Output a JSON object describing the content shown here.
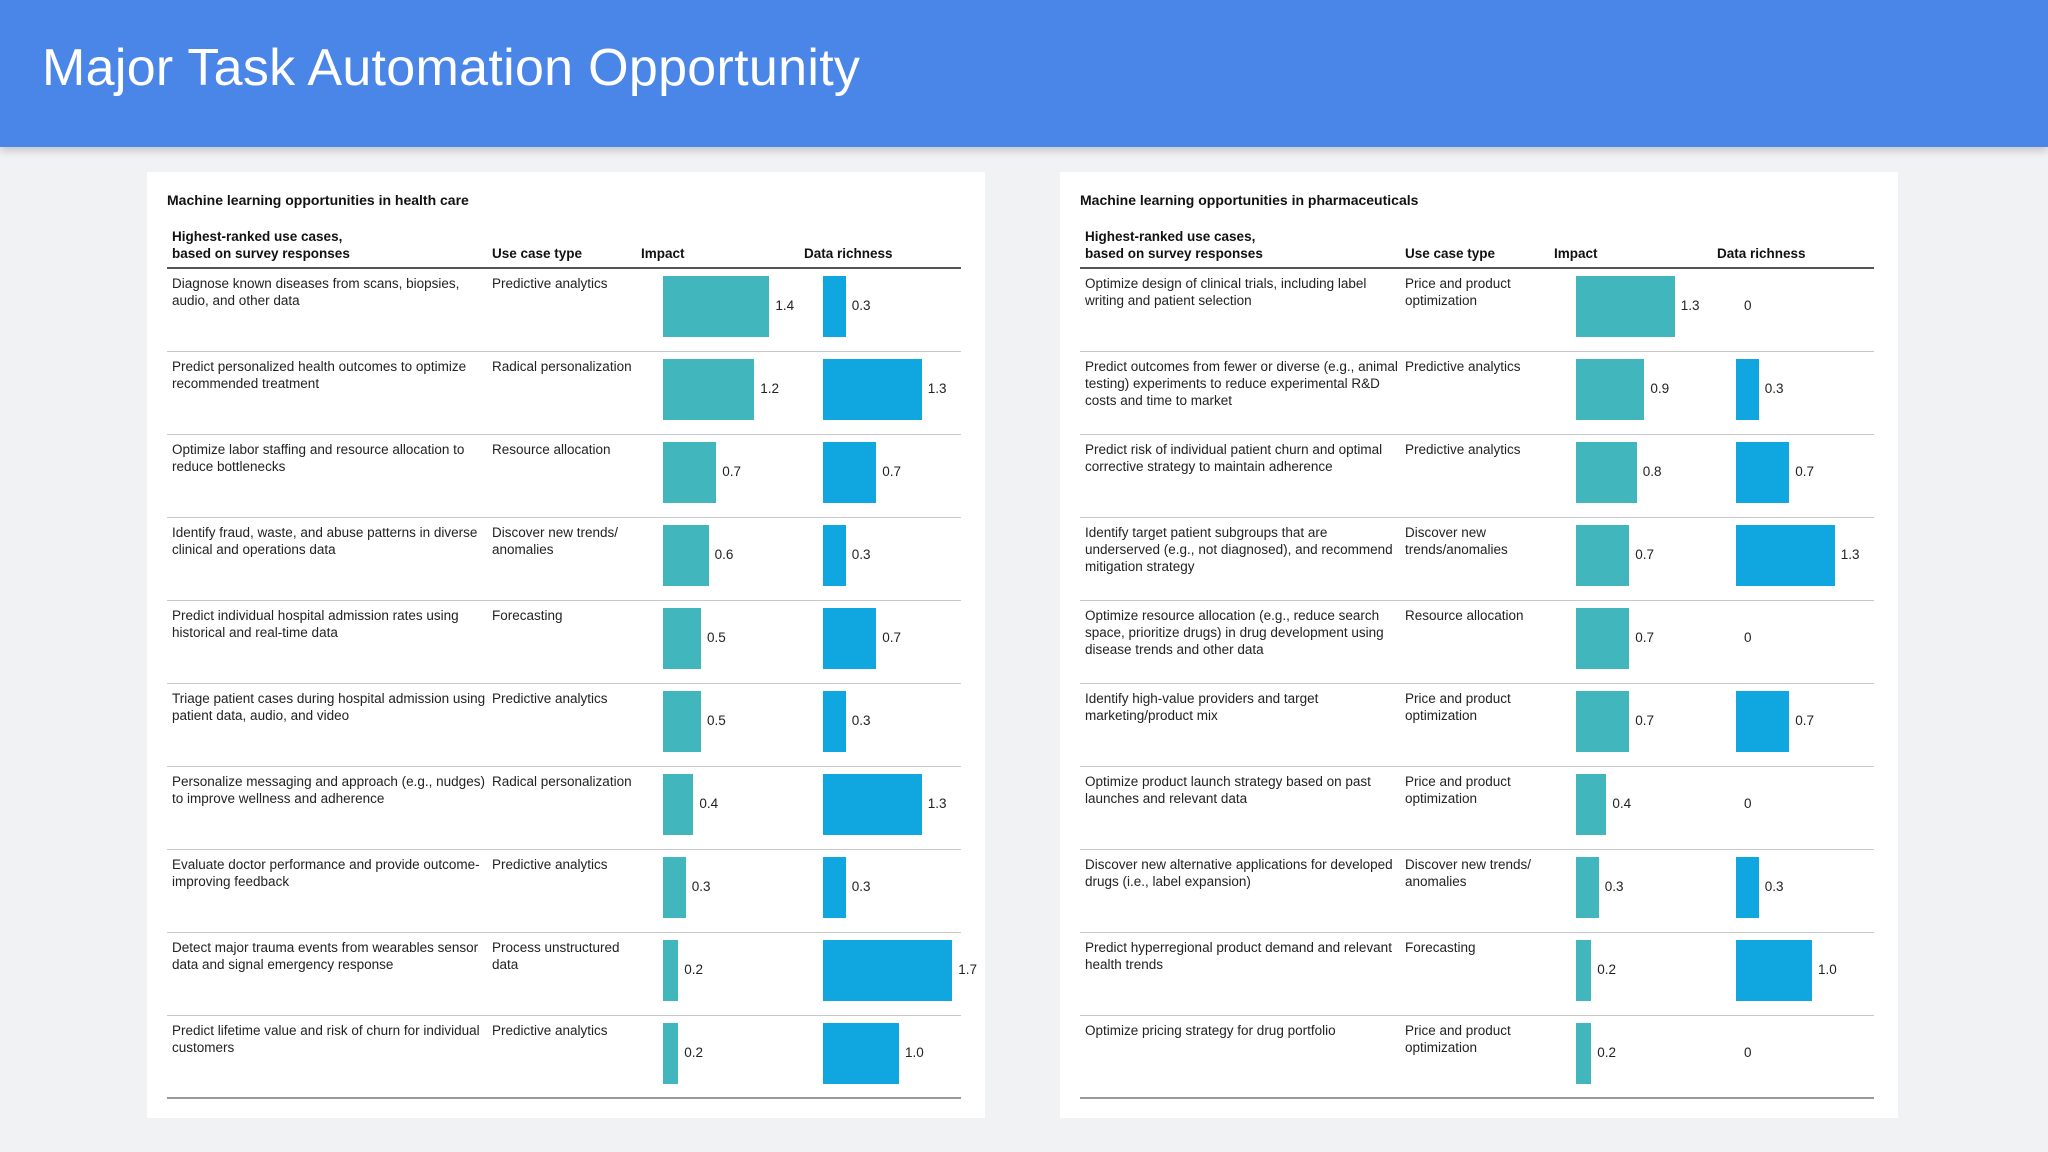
{
  "title": "Major Task Automation Opportunity",
  "colors": {
    "header": "#4a86e8",
    "impact_bar": "#41b6bd",
    "richness_bar": "#10a7e0"
  },
  "chart_data": [
    {
      "type": "bar",
      "title": "Machine learning opportunities in health care",
      "columns": {
        "use_case": "Highest-ranked use cases,\nbased on survey responses",
        "use_case_type": "Use case type",
        "impact": "Impact",
        "data_richness": "Data richness"
      },
      "xlim": [
        0,
        1.8
      ],
      "rows": [
        {
          "use_case": "Diagnose known diseases from scans, biopsies, audio, and other data",
          "type": "Predictive analytics",
          "impact": 1.4,
          "impact_label": "1.4",
          "richness": 0.3,
          "richness_label": "0.3"
        },
        {
          "use_case": "Predict personalized health outcomes to optimize recommended treatment",
          "type": "Radical personalization",
          "impact": 1.2,
          "impact_label": "1.2",
          "richness": 1.3,
          "richness_label": "1.3"
        },
        {
          "use_case": "Optimize labor staffing and resource allocation to reduce bottlenecks",
          "type": "Resource allocation",
          "impact": 0.7,
          "impact_label": "0.7",
          "richness": 0.7,
          "richness_label": "0.7"
        },
        {
          "use_case": "Identify fraud, waste, and abuse patterns in diverse clinical and operations data",
          "type": "Discover new trends/ anomalies",
          "impact": 0.6,
          "impact_label": "0.6",
          "richness": 0.3,
          "richness_label": "0.3"
        },
        {
          "use_case": "Predict individual hospital admission rates using historical and real-time data",
          "type": "Forecasting",
          "impact": 0.5,
          "impact_label": "0.5",
          "richness": 0.7,
          "richness_label": "0.7"
        },
        {
          "use_case": "Triage patient cases during hospital admission using patient data, audio, and video",
          "type": "Predictive analytics",
          "impact": 0.5,
          "impact_label": "0.5",
          "richness": 0.3,
          "richness_label": "0.3"
        },
        {
          "use_case": "Personalize messaging and approach (e.g., nudges) to improve wellness and adherence",
          "type": "Radical personalization",
          "impact": 0.4,
          "impact_label": "0.4",
          "richness": 1.3,
          "richness_label": "1.3"
        },
        {
          "use_case": "Evaluate doctor performance and provide outcome-improving feedback",
          "type": "Predictive analytics",
          "impact": 0.3,
          "impact_label": "0.3",
          "richness": 0.3,
          "richness_label": "0.3"
        },
        {
          "use_case": "Detect major trauma events from wearables sensor data and signal emergency response",
          "type": "Process unstructured data",
          "impact": 0.2,
          "impact_label": "0.2",
          "richness": 1.7,
          "richness_label": "1.7"
        },
        {
          "use_case": "Predict lifetime value and risk of churn for individual customers",
          "type": "Predictive analytics",
          "impact": 0.2,
          "impact_label": "0.2",
          "richness": 1.0,
          "richness_label": "1.0"
        }
      ]
    },
    {
      "type": "bar",
      "title": "Machine learning opportunities in pharmaceuticals",
      "columns": {
        "use_case": "Highest-ranked use cases,\nbased on survey responses",
        "use_case_type": "Use case type",
        "impact": "Impact",
        "data_richness": "Data richness"
      },
      "xlim": [
        0,
        1.8
      ],
      "rows": [
        {
          "use_case": "Optimize design of clinical trials, including label writing and patient selection",
          "type": "Price and product optimization",
          "impact": 1.3,
          "impact_label": "1.3",
          "richness": 0,
          "richness_label": "0"
        },
        {
          "use_case": "Predict outcomes from fewer or diverse (e.g., animal testing) experiments to reduce experimental R&D costs and time to market",
          "type": "Predictive analytics",
          "impact": 0.9,
          "impact_label": "0.9",
          "richness": 0.3,
          "richness_label": "0.3"
        },
        {
          "use_case": "Predict risk of individual patient churn and optimal corrective strategy to maintain adherence",
          "type": "Predictive analytics",
          "impact": 0.8,
          "impact_label": "0.8",
          "richness": 0.7,
          "richness_label": "0.7"
        },
        {
          "use_case": "Identify target patient subgroups that are underserved (e.g., not diagnosed), and recommend mitigation strategy",
          "type": "Discover new trends/anomalies",
          "impact": 0.7,
          "impact_label": "0.7",
          "richness": 1.3,
          "richness_label": "1.3"
        },
        {
          "use_case": "Optimize resource allocation (e.g., reduce search space, prioritize drugs) in drug development using disease trends and other data",
          "type": "Resource allocation",
          "impact": 0.7,
          "impact_label": "0.7",
          "richness": 0,
          "richness_label": "0"
        },
        {
          "use_case": "Identify high-value providers and target marketing/product mix",
          "type": "Price and product optimization",
          "impact": 0.7,
          "impact_label": "0.7",
          "richness": 0.7,
          "richness_label": "0.7"
        },
        {
          "use_case": "Optimize product launch strategy based on past launches and relevant data",
          "type": "Price and product optimization",
          "impact": 0.4,
          "impact_label": "0.4",
          "richness": 0,
          "richness_label": "0"
        },
        {
          "use_case": "Discover new alternative applications for developed drugs (i.e., label expansion)",
          "type": "Discover new trends/ anomalies",
          "impact": 0.3,
          "impact_label": "0.3",
          "richness": 0.3,
          "richness_label": "0.3"
        },
        {
          "use_case": "Predict hyperregional product demand and relevant health trends",
          "type": "Forecasting",
          "impact": 0.2,
          "impact_label": "0.2",
          "richness": 1.0,
          "richness_label": "1.0"
        },
        {
          "use_case": "Optimize pricing strategy for drug portfolio",
          "type": "Price and product optimization",
          "impact": 0.2,
          "impact_label": "0.2",
          "richness": 0,
          "richness_label": "0"
        }
      ]
    }
  ]
}
